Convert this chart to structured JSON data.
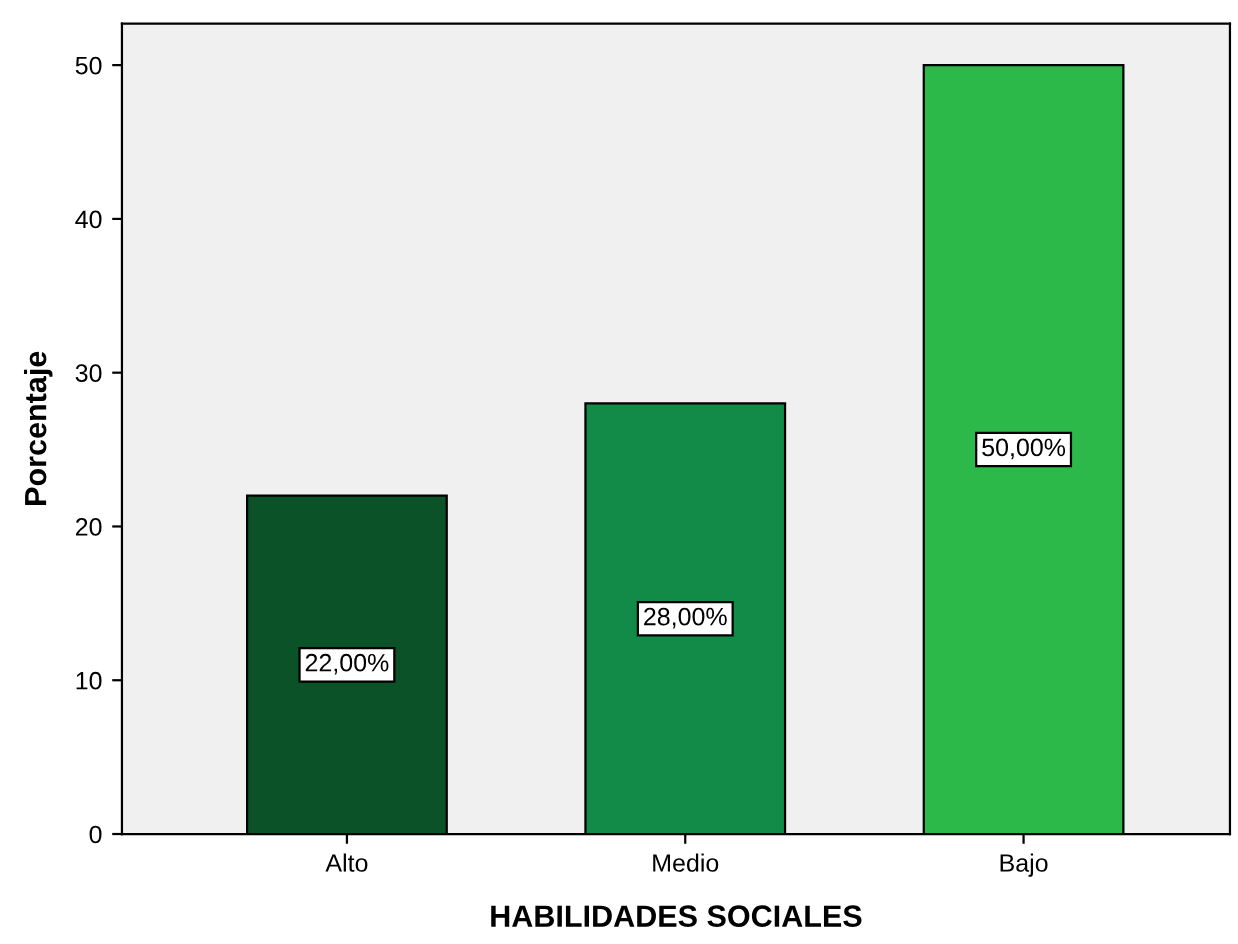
{
  "chart_data": {
    "type": "bar",
    "xlabel": "HABILIDADES SOCIALES",
    "ylabel": "Porcentaje",
    "categories": [
      "Alto",
      "Medio",
      "Bajo"
    ],
    "values": [
      22,
      28,
      50
    ],
    "colors": [
      "#0b5229",
      "#128a48",
      "#2db84a"
    ],
    "value_labels": [
      "22,00%",
      "28,00%",
      "50,00%"
    ],
    "ylim": [
      0,
      52.7
    ],
    "yticks": [
      0,
      10,
      20,
      30,
      40,
      50
    ],
    "grid": false,
    "legend": false
  }
}
